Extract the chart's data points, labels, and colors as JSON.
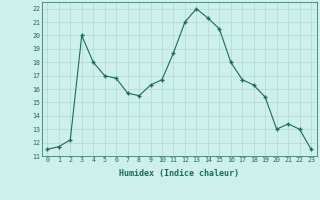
{
  "x": [
    0,
    1,
    2,
    3,
    4,
    5,
    6,
    7,
    8,
    9,
    10,
    11,
    12,
    13,
    14,
    15,
    16,
    17,
    18,
    19,
    20,
    21,
    22,
    23
  ],
  "y": [
    11.5,
    11.7,
    12.2,
    20.0,
    18.0,
    17.0,
    16.8,
    15.7,
    15.5,
    16.3,
    16.7,
    18.7,
    21.0,
    22.0,
    21.3,
    20.5,
    18.0,
    16.7,
    16.3,
    15.4,
    13.0,
    13.4,
    13.0,
    11.5
  ],
  "xlabel": "Humidex (Indice chaleur)",
  "ylim": [
    11,
    22.5
  ],
  "xlim": [
    -0.5,
    23.5
  ],
  "yticks": [
    11,
    12,
    13,
    14,
    15,
    16,
    17,
    18,
    19,
    20,
    21,
    22
  ],
  "xticks": [
    0,
    1,
    2,
    3,
    4,
    5,
    6,
    7,
    8,
    9,
    10,
    11,
    12,
    13,
    14,
    15,
    16,
    17,
    18,
    19,
    20,
    21,
    22,
    23
  ],
  "line_color": "#1a6b5a",
  "marker_color": "#1a6b5a",
  "bg_color": "#cef0ea",
  "grid_color": "#b0d8d2",
  "axes_bg": "#cef0ea"
}
